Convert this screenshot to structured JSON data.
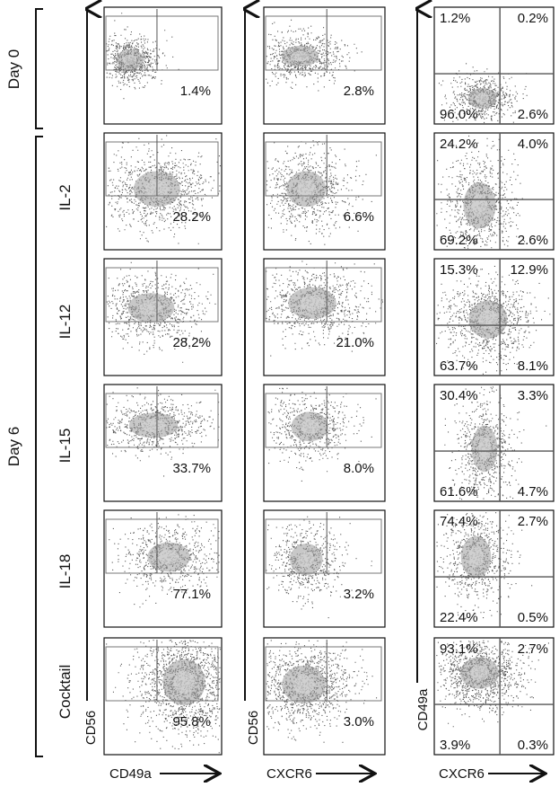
{
  "chart_data": {
    "type": "scatter",
    "groups": [
      {
        "label": "Day 0",
        "rows": [
          "row0"
        ]
      },
      {
        "label": "Day 6",
        "rows": [
          "row1",
          "row2",
          "row3",
          "row4",
          "row5"
        ]
      }
    ],
    "rows": [
      {
        "label": "",
        "col1": "1.4%",
        "col2": "2.8%",
        "quad": {
          "ul": "1.2%",
          "ur": "0.2%",
          "ll": "96.0%",
          "lr": "2.6%"
        }
      },
      {
        "label": "IL-2",
        "col1": "28.2%",
        "col2": "6.6%",
        "quad": {
          "ul": "24.2%",
          "ur": "4.0%",
          "ll": "69.2%",
          "lr": "2.6%"
        }
      },
      {
        "label": "IL-12",
        "col1": "28.2%",
        "col2": "21.0%",
        "quad": {
          "ul": "15.3%",
          "ur": "12.9%",
          "ll": "63.7%",
          "lr": "8.1%"
        }
      },
      {
        "label": "IL-15",
        "col1": "33.7%",
        "col2": "8.0%",
        "quad": {
          "ul": "30.4%",
          "ur": "3.3%",
          "ll": "61.6%",
          "lr": "4.7%"
        }
      },
      {
        "label": "IL-18",
        "col1": "77.1%",
        "col2": "3.2%",
        "quad": {
          "ul": "74.4%",
          "ur": "2.7%",
          "ll": "22.4%",
          "lr": "0.5%"
        }
      },
      {
        "label": "Cocktail",
        "col1": "95.8%",
        "col2": "3.0%",
        "quad": {
          "ul": "93.1%",
          "ur": "2.7%",
          "ll": "3.9%",
          "lr": "0.3%"
        }
      }
    ],
    "columns": [
      {
        "xlabel": "CD49a",
        "ylabel": "CD56"
      },
      {
        "xlabel": "CXCR6",
        "ylabel": "CD56"
      },
      {
        "xlabel": "CXCR6",
        "ylabel": "CD49a"
      }
    ]
  }
}
